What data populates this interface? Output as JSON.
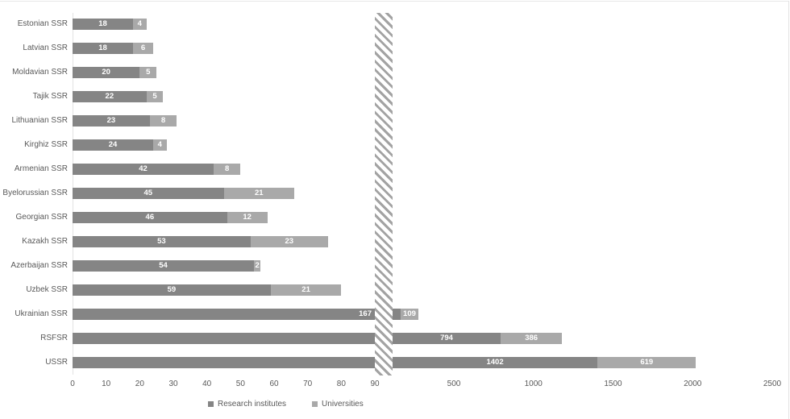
{
  "chart_data": {
    "type": "bar",
    "orientation": "horizontal",
    "stacked": true,
    "title": "",
    "categories": [
      "Estonian SSR",
      "Latvian SSR",
      "Moldavian SSR",
      "Tajik SSR",
      "Lithuanian SSR",
      "Kirghiz SSR",
      "Armenian SSR",
      "Byelorussian SSR",
      "Georgian SSR",
      "Kazakh SSR",
      "Azerbaijan SSR",
      "Uzbek SSR",
      "Ukrainian SSR",
      "RSFSR",
      "USSR"
    ],
    "series": [
      {
        "name": "Research institutes",
        "color": "#858585",
        "values": [
          18,
          18,
          20,
          22,
          23,
          24,
          42,
          45,
          46,
          53,
          54,
          59,
          167,
          794,
          1402
        ]
      },
      {
        "name": "Universities",
        "color": "#a9a9a9",
        "values": [
          4,
          6,
          5,
          5,
          8,
          4,
          8,
          21,
          12,
          23,
          2,
          21,
          109,
          386,
          619
        ]
      }
    ],
    "x_axis": {
      "left_segment_ticks": [
        0,
        10,
        20,
        30,
        40,
        50,
        60,
        70,
        80,
        90
      ],
      "right_segment_ticks": [
        500,
        1000,
        1500,
        2000,
        2500
      ],
      "axis_break": true,
      "left_range": [
        0,
        90
      ],
      "right_range_shown": [
        500,
        2500
      ]
    },
    "data_labels": true,
    "legend_position": "bottom",
    "grid": false
  },
  "legend": {
    "items": [
      {
        "label": "Research institutes",
        "color": "#858585"
      },
      {
        "label": "Universities",
        "color": "#a9a9a9"
      }
    ]
  },
  "colors": {
    "background": "#ffffff",
    "text": "#595959",
    "value_label": "#ffffff",
    "axis_line": "#e3e3e3",
    "hatch_stripe": "#a3a3a3"
  }
}
